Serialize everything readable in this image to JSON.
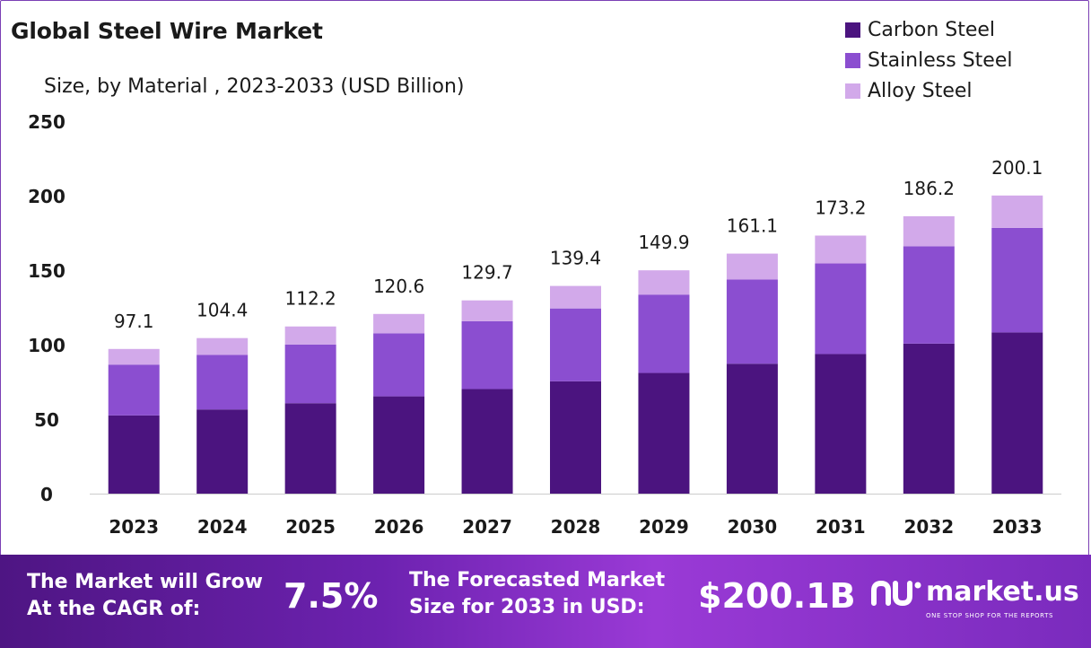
{
  "title": "Global Steel Wire Market",
  "subtitle": "Size, by Material , 2023-2033 (USD Billion)",
  "colors": {
    "carbon": "#4b147f",
    "stainless": "#8b4ed0",
    "alloy": "#d2a9ea",
    "axis": "#cccccc",
    "footer_start": "#4e1583",
    "footer_end": "#9a3ad6"
  },
  "chart_data": {
    "type": "bar",
    "stacked": true,
    "categories": [
      "2023",
      "2024",
      "2025",
      "2026",
      "2027",
      "2028",
      "2029",
      "2030",
      "2031",
      "2032",
      "2033"
    ],
    "series": [
      {
        "name": "Carbon Steel",
        "color": "#4b147f",
        "values": [
          52.5,
          56.5,
          60.7,
          65.3,
          70.2,
          75.4,
          81.0,
          87.2,
          93.7,
          100.7,
          108.2
        ]
      },
      {
        "name": "Stainless Steel",
        "color": "#8b4ed0",
        "values": [
          34.1,
          36.6,
          39.4,
          42.3,
          45.5,
          48.9,
          52.6,
          56.5,
          60.8,
          65.3,
          70.2
        ]
      },
      {
        "name": "Alloy Steel",
        "color": "#d2a9ea",
        "values": [
          10.5,
          11.3,
          12.1,
          13.0,
          14.0,
          15.1,
          16.3,
          17.4,
          18.7,
          20.2,
          21.7
        ]
      }
    ],
    "totals": [
      "97.1",
      "104.4",
      "112.2",
      "120.6",
      "129.7",
      "139.4",
      "149.9",
      "161.1",
      "173.2",
      "186.2",
      "200.1"
    ],
    "yticks": [
      "0",
      "50",
      "100",
      "150",
      "200",
      "250"
    ],
    "ylim": [
      0,
      250
    ],
    "grid": false,
    "legend_position": "top-right"
  },
  "footer": {
    "cagr_label_line1": "The Market will Grow",
    "cagr_label_line2": "At the CAGR of:",
    "cagr_value": "7.5%",
    "forecast_label_line1": "The Forecasted Market",
    "forecast_label_line2": "Size for 2033 in USD:",
    "forecast_value": "$200.1B",
    "brand_name": "market.us",
    "brand_tagline": "ONE STOP SHOP FOR THE REPORTS"
  }
}
